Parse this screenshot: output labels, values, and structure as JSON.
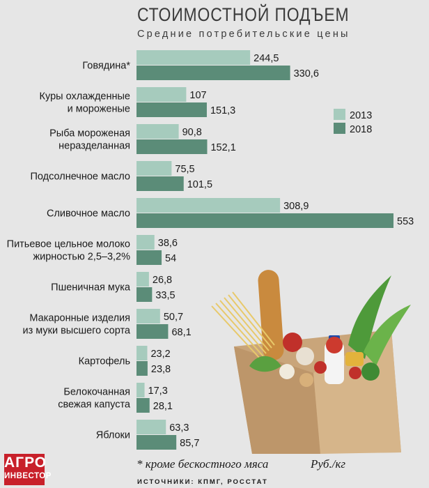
{
  "title": "СТОИМОСТНОЙ ПОДЪЕМ",
  "subtitle": "Средние потребительские цены",
  "footnote": "* кроме бескостного мяса",
  "unit": "Руб./кг",
  "sources": "ИСТОЧНИКИ: КПМГ, РОССТАТ",
  "logo": {
    "line1": "АГРО",
    "line2": "ИНВЕСТОР"
  },
  "colors": {
    "s2013": "#a6cbbd",
    "s2018": "#5b8c78",
    "background": "#e6e6e6"
  },
  "chart_data": {
    "type": "bar",
    "orientation": "horizontal",
    "title": "СТОИМОСТНОЙ ПОДЪЕМ",
    "subtitle": "Средние потребительские цены",
    "legend_position": "right",
    "categories": [
      [
        "Говядина*"
      ],
      [
        "Куры охлажденные",
        "и мороженые"
      ],
      [
        "Рыба мороженая",
        "неразделанная"
      ],
      [
        "Подсолнечное масло"
      ],
      [
        "Сливочное масло"
      ],
      [
        "Питьевое цельное молоко",
        "жирностью 2,5–3,2%"
      ],
      [
        "Пшеничная мука"
      ],
      [
        "Макаронные изделия",
        "из муки высшего сорта"
      ],
      [
        "Картофель"
      ],
      [
        "Белокочанная",
        "свежая капуста"
      ],
      [
        "Яблоки"
      ]
    ],
    "series": [
      {
        "name": "2013",
        "values": [
          244.5,
          107,
          90.8,
          75.5,
          308.9,
          38.6,
          26.8,
          50.7,
          23.2,
          17.3,
          63.3
        ],
        "labels": [
          "244,5",
          "107",
          "90,8",
          "75,5",
          "308,9",
          "38,6",
          "26,8",
          "50,7",
          "23,2",
          "17,3",
          "63,3"
        ]
      },
      {
        "name": "2018",
        "values": [
          330.6,
          151.3,
          152.1,
          101.5,
          553,
          54,
          33.5,
          68.1,
          23.8,
          28.1,
          85.7
        ],
        "labels": [
          "330,6",
          "151,3",
          "152,1",
          "101,5",
          "553",
          "54",
          "33,5",
          "68,1",
          "23,8",
          "28,1",
          "85,7"
        ]
      }
    ],
    "xlim": [
      0,
      553
    ],
    "grid": false
  }
}
